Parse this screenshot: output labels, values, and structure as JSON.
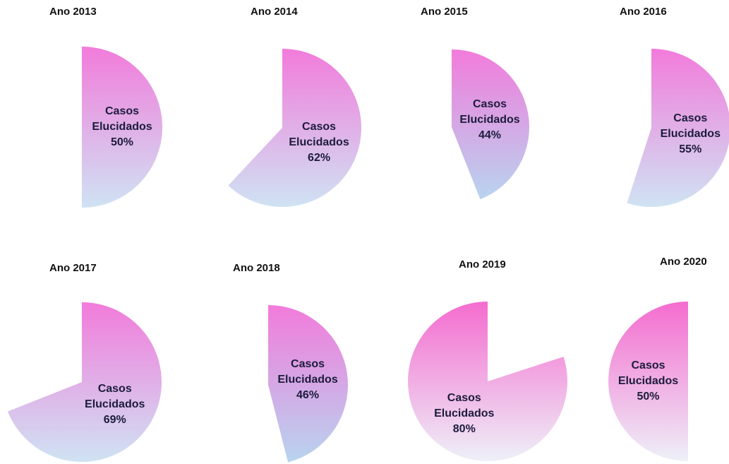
{
  "chart_data": [
    {
      "type": "pie",
      "title": "Ano 2013",
      "categories": [
        "Casos Elucidados"
      ],
      "values": [
        50
      ],
      "value_labels": [
        "50%"
      ],
      "clockwise": true,
      "colors": [
        "#f27bdb",
        "#cfe3f3"
      ]
    },
    {
      "type": "pie",
      "title": "Ano 2014",
      "categories": [
        "Casos Elucidados"
      ],
      "values": [
        62
      ],
      "value_labels": [
        "62%"
      ],
      "clockwise": true,
      "colors": [
        "#f27bdb",
        "#cfe3f3"
      ]
    },
    {
      "type": "pie",
      "title": "Ano 2015",
      "categories": [
        "Casos Elucidados"
      ],
      "values": [
        44
      ],
      "value_labels": [
        "44%"
      ],
      "clockwise": true,
      "colors": [
        "#f27bdb",
        "#b8d4ef"
      ]
    },
    {
      "type": "pie",
      "title": "Ano 2016",
      "categories": [
        "Casos Elucidados"
      ],
      "values": [
        55
      ],
      "value_labels": [
        "55%"
      ],
      "clockwise": true,
      "colors": [
        "#f27bdb",
        "#cfe3f3"
      ]
    },
    {
      "type": "pie",
      "title": "Ano 2017",
      "categories": [
        "Casos Elucidados"
      ],
      "values": [
        69
      ],
      "value_labels": [
        "69%"
      ],
      "clockwise": true,
      "colors": [
        "#f27bdb",
        "#cfe3f3"
      ]
    },
    {
      "type": "pie",
      "title": "Ano 2018",
      "categories": [
        "Casos Elucidados"
      ],
      "values": [
        46
      ],
      "value_labels": [
        "46%"
      ],
      "clockwise": true,
      "colors": [
        "#f27bdb",
        "#b8d4ef"
      ]
    },
    {
      "type": "pie",
      "title": "Ano 2019",
      "categories": [
        "Casos Elucidados"
      ],
      "values": [
        80
      ],
      "value_labels": [
        "80%"
      ],
      "clockwise": false,
      "colors": [
        "#f46ccf",
        "#eef0f8"
      ]
    },
    {
      "type": "pie",
      "title": "Ano 2020",
      "categories": [
        "Casos Elucidados"
      ],
      "values": [
        50
      ],
      "value_labels": [
        "50%"
      ],
      "clockwise": false,
      "colors": [
        "#f46ccf",
        "#eef0f8"
      ]
    }
  ]
}
